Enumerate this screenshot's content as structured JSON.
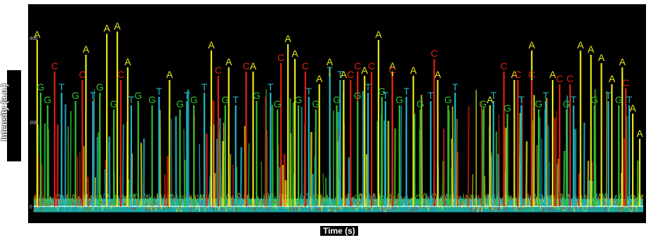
{
  "chart_data": {
    "type": "line",
    "title": "",
    "xlabel": "Time (s)",
    "ylabel": "Intensity (a.u.)",
    "yticks": [
      "400",
      "200",
      "0"
    ],
    "ylim": [
      -40,
      480
    ],
    "base_labels": [
      "A",
      "C",
      "G",
      "T"
    ],
    "colors": {
      "A": "#e8e81a",
      "C": "#e02010",
      "G": "#30c030",
      "T": "#20b8c8",
      "baseline": "#20c0c0",
      "background": "#000000"
    },
    "series": [
      {
        "base": "A",
        "peaks": [
          [
            50,
            395
          ],
          [
            120,
            360
          ],
          [
            150,
            410
          ],
          [
            165,
            415
          ],
          [
            180,
            330
          ],
          [
            240,
            300
          ],
          [
            300,
            370
          ],
          [
            325,
            330
          ],
          [
            360,
            320
          ],
          [
            410,
            385
          ],
          [
            420,
            350
          ],
          [
            455,
            290
          ],
          [
            470,
            330
          ],
          [
            490,
            300
          ],
          [
            520,
            310
          ],
          [
            540,
            395
          ],
          [
            560,
            320
          ],
          [
            590,
            310
          ],
          [
            625,
            300
          ],
          [
            700,
            240
          ],
          [
            735,
            300
          ],
          [
            760,
            370
          ],
          [
            790,
            300
          ],
          [
            830,
            370
          ],
          [
            845,
            360
          ],
          [
            860,
            340
          ],
          [
            875,
            290
          ],
          [
            890,
            330
          ],
          [
            905,
            220
          ],
          [
            915,
            160
          ]
        ]
      },
      {
        "base": "C",
        "peaks": [
          [
            75,
            320
          ],
          [
            115,
            300
          ],
          [
            170,
            300
          ],
          [
            310,
            310
          ],
          [
            350,
            320
          ],
          [
            400,
            340
          ],
          [
            435,
            320
          ],
          [
            500,
            300
          ],
          [
            510,
            320
          ],
          [
            530,
            320
          ],
          [
            560,
            310
          ],
          [
            620,
            350
          ],
          [
            720,
            320
          ],
          [
            740,
            300
          ],
          [
            760,
            300
          ],
          [
            800,
            290
          ],
          [
            815,
            290
          ],
          [
            895,
            280
          ]
        ]
      },
      {
        "base": "G",
        "peaks": [
          [
            55,
            270
          ],
          [
            65,
            240
          ],
          [
            105,
            250
          ],
          [
            140,
            270
          ],
          [
            160,
            230
          ],
          [
            195,
            250
          ],
          [
            215,
            240
          ],
          [
            255,
            230
          ],
          [
            275,
            240
          ],
          [
            320,
            240
          ],
          [
            365,
            250
          ],
          [
            395,
            230
          ],
          [
            425,
            240
          ],
          [
            450,
            230
          ],
          [
            480,
            240
          ],
          [
            510,
            250
          ],
          [
            545,
            260
          ],
          [
            570,
            240
          ],
          [
            600,
            230
          ],
          [
            640,
            240
          ],
          [
            690,
            230
          ],
          [
            725,
            220
          ],
          [
            770,
            230
          ],
          [
            810,
            230
          ],
          [
            850,
            240
          ],
          [
            885,
            240
          ]
        ]
      },
      {
        "base": "T",
        "peaks": [
          [
            85,
            270
          ],
          [
            130,
            250
          ],
          [
            185,
            240
          ],
          [
            225,
            260
          ],
          [
            265,
            250
          ],
          [
            290,
            270
          ],
          [
            335,
            240
          ],
          [
            385,
            270
          ],
          [
            440,
            260
          ],
          [
            470,
            310
          ],
          [
            485,
            300
          ],
          [
            525,
            270
          ],
          [
            550,
            250
          ],
          [
            580,
            260
          ],
          [
            615,
            250
          ],
          [
            650,
            270
          ],
          [
            705,
            250
          ],
          [
            745,
            240
          ],
          [
            780,
            250
          ],
          [
            820,
            240
          ],
          [
            870,
            250
          ],
          [
            900,
            240
          ]
        ]
      }
    ]
  }
}
